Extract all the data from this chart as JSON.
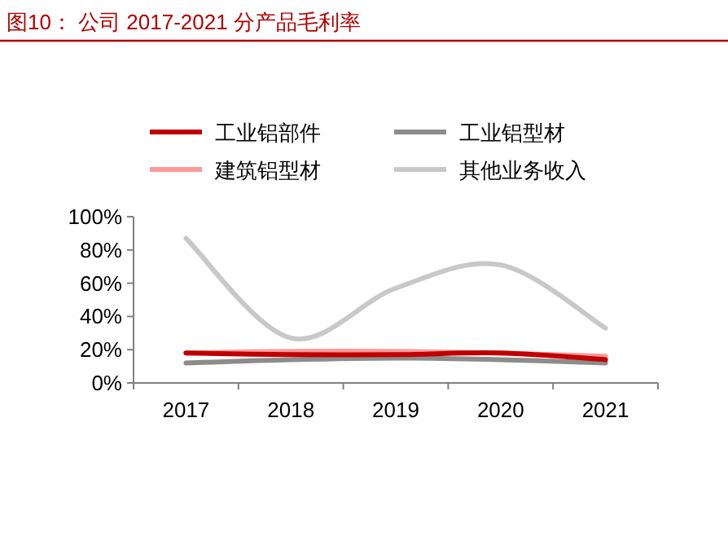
{
  "chart_data": {
    "type": "line",
    "title": "图10：  公司 2017-2021 分产品毛利率",
    "categories": [
      "2017",
      "2018",
      "2019",
      "2020",
      "2021"
    ],
    "series": [
      {
        "name": "工业铝部件",
        "color": "#c00000",
        "values": [
          18,
          17,
          17,
          18,
          14
        ]
      },
      {
        "name": "工业铝型材",
        "color": "#8c8c8c",
        "values": [
          12,
          14,
          15,
          14,
          12
        ]
      },
      {
        "name": "建筑铝型材",
        "color": "#ff9999",
        "values": [
          18,
          19,
          19,
          18,
          16
        ]
      },
      {
        "name": "其他业务收入",
        "color": "#c8c8c8",
        "values": [
          87,
          27,
          57,
          71,
          33
        ]
      }
    ],
    "ylim": [
      0,
      100
    ],
    "yticks": [
      {
        "value": 0,
        "label": "0%"
      },
      {
        "value": 20,
        "label": "20%"
      },
      {
        "value": 40,
        "label": "40%"
      },
      {
        "value": 60,
        "label": "60%"
      },
      {
        "value": 80,
        "label": "80%"
      },
      {
        "value": 100,
        "label": "100%"
      }
    ],
    "grid": false,
    "legend": "top",
    "marker": "none",
    "line_style": "solid"
  }
}
